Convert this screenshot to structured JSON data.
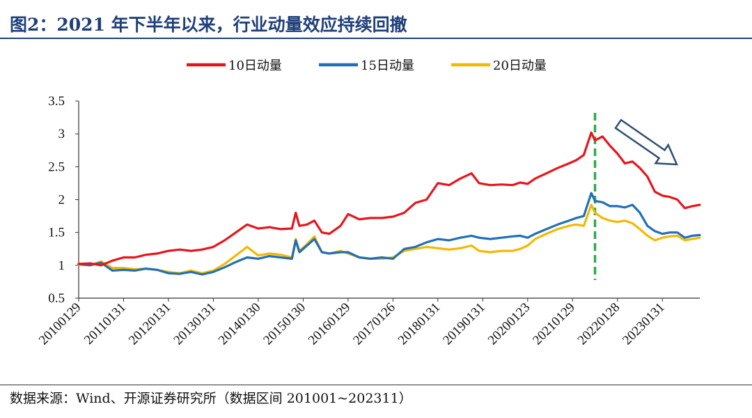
{
  "header": {
    "title": "图2：2021 年下半年以来，行业动量效应持续回撤"
  },
  "footer": {
    "source": "数据来源：Wind、开源证券研究所（数据区间 201001~202311）"
  },
  "colors": {
    "series_10": "#E8141B",
    "series_15": "#1F6FB8",
    "series_20": "#F5B800",
    "marker_line": "#2EAA4A",
    "arrow": "#2F4F6F",
    "title": "#1F3F7A"
  },
  "chart_data": {
    "type": "line",
    "ylim": [
      0.5,
      3.5
    ],
    "yticks": [
      "3.5",
      "3",
      "2.5",
      "2",
      "1.5",
      "1",
      "0.5"
    ],
    "ytick_values": [
      3.5,
      3.0,
      2.5,
      2.0,
      1.5,
      1.0,
      0.5
    ],
    "x_range": [
      0,
      166
    ],
    "xtick_labels": [
      "20100129",
      "20110131",
      "20120131",
      "20130131",
      "20140130",
      "20150130",
      "20160129",
      "20170126",
      "20180131",
      "20190131",
      "20200123",
      "20210129",
      "20220128",
      "20230131"
    ],
    "xtick_index": [
      0,
      12,
      24,
      36,
      48,
      60,
      72,
      84,
      96,
      108,
      120,
      132,
      144,
      156
    ],
    "vline_index": 138,
    "legend": {
      "placement": "top-center"
    },
    "series": [
      {
        "name": "10日动量",
        "color": "#E8141B",
        "points": [
          [
            0,
            1.02
          ],
          [
            3,
            1.03
          ],
          [
            6,
            1.0
          ],
          [
            9,
            1.07
          ],
          [
            12,
            1.12
          ],
          [
            15,
            1.12
          ],
          [
            18,
            1.16
          ],
          [
            21,
            1.18
          ],
          [
            24,
            1.22
          ],
          [
            27,
            1.24
          ],
          [
            30,
            1.22
          ],
          [
            33,
            1.24
          ],
          [
            36,
            1.28
          ],
          [
            39,
            1.38
          ],
          [
            42,
            1.5
          ],
          [
            45,
            1.62
          ],
          [
            48,
            1.56
          ],
          [
            51,
            1.58
          ],
          [
            54,
            1.55
          ],
          [
            57,
            1.56
          ],
          [
            58,
            1.8
          ],
          [
            59,
            1.6
          ],
          [
            61,
            1.62
          ],
          [
            63,
            1.68
          ],
          [
            65,
            1.5
          ],
          [
            67,
            1.48
          ],
          [
            70,
            1.6
          ],
          [
            72,
            1.78
          ],
          [
            75,
            1.7
          ],
          [
            78,
            1.72
          ],
          [
            81,
            1.72
          ],
          [
            84,
            1.74
          ],
          [
            87,
            1.8
          ],
          [
            90,
            1.95
          ],
          [
            93,
            2.0
          ],
          [
            96,
            2.25
          ],
          [
            99,
            2.22
          ],
          [
            102,
            2.32
          ],
          [
            105,
            2.4
          ],
          [
            107,
            2.25
          ],
          [
            110,
            2.22
          ],
          [
            113,
            2.23
          ],
          [
            116,
            2.22
          ],
          [
            118,
            2.26
          ],
          [
            120,
            2.24
          ],
          [
            122,
            2.32
          ],
          [
            125,
            2.4
          ],
          [
            128,
            2.48
          ],
          [
            131,
            2.55
          ],
          [
            133,
            2.6
          ],
          [
            135,
            2.68
          ],
          [
            137,
            3.02
          ],
          [
            138,
            2.9
          ],
          [
            140,
            2.96
          ],
          [
            142,
            2.82
          ],
          [
            144,
            2.7
          ],
          [
            146,
            2.55
          ],
          [
            148,
            2.58
          ],
          [
            150,
            2.48
          ],
          [
            152,
            2.35
          ],
          [
            154,
            2.12
          ],
          [
            156,
            2.06
          ],
          [
            158,
            2.04
          ],
          [
            160,
            2.0
          ],
          [
            162,
            1.87
          ],
          [
            164,
            1.9
          ],
          [
            166,
            1.92
          ]
        ]
      },
      {
        "name": "15日动量",
        "color": "#1F6FB8",
        "points": [
          [
            0,
            1.02
          ],
          [
            3,
            1.0
          ],
          [
            6,
            1.04
          ],
          [
            9,
            0.92
          ],
          [
            12,
            0.93
          ],
          [
            15,
            0.92
          ],
          [
            18,
            0.95
          ],
          [
            21,
            0.93
          ],
          [
            24,
            0.88
          ],
          [
            27,
            0.87
          ],
          [
            30,
            0.9
          ],
          [
            33,
            0.86
          ],
          [
            36,
            0.9
          ],
          [
            39,
            0.97
          ],
          [
            42,
            1.05
          ],
          [
            45,
            1.12
          ],
          [
            48,
            1.1
          ],
          [
            51,
            1.14
          ],
          [
            54,
            1.12
          ],
          [
            57,
            1.1
          ],
          [
            58,
            1.38
          ],
          [
            59,
            1.2
          ],
          [
            61,
            1.3
          ],
          [
            63,
            1.4
          ],
          [
            65,
            1.2
          ],
          [
            67,
            1.18
          ],
          [
            70,
            1.2
          ],
          [
            72,
            1.2
          ],
          [
            75,
            1.12
          ],
          [
            78,
            1.1
          ],
          [
            81,
            1.12
          ],
          [
            84,
            1.1
          ],
          [
            87,
            1.25
          ],
          [
            90,
            1.28
          ],
          [
            93,
            1.35
          ],
          [
            96,
            1.4
          ],
          [
            99,
            1.38
          ],
          [
            102,
            1.42
          ],
          [
            105,
            1.45
          ],
          [
            107,
            1.42
          ],
          [
            110,
            1.4
          ],
          [
            113,
            1.42
          ],
          [
            116,
            1.44
          ],
          [
            118,
            1.45
          ],
          [
            120,
            1.42
          ],
          [
            122,
            1.48
          ],
          [
            125,
            1.55
          ],
          [
            128,
            1.62
          ],
          [
            131,
            1.68
          ],
          [
            133,
            1.72
          ],
          [
            135,
            1.75
          ],
          [
            137,
            2.1
          ],
          [
            138,
            1.98
          ],
          [
            140,
            1.96
          ],
          [
            142,
            1.9
          ],
          [
            144,
            1.9
          ],
          [
            146,
            1.88
          ],
          [
            148,
            1.92
          ],
          [
            150,
            1.8
          ],
          [
            152,
            1.6
          ],
          [
            154,
            1.52
          ],
          [
            156,
            1.48
          ],
          [
            158,
            1.5
          ],
          [
            160,
            1.5
          ],
          [
            162,
            1.42
          ],
          [
            164,
            1.45
          ],
          [
            166,
            1.46
          ]
        ]
      },
      {
        "name": "20日动量",
        "color": "#F5B800",
        "points": [
          [
            0,
            1.01
          ],
          [
            3,
            1.0
          ],
          [
            6,
            1.06
          ],
          [
            9,
            0.96
          ],
          [
            12,
            0.96
          ],
          [
            15,
            0.94
          ],
          [
            18,
            0.95
          ],
          [
            21,
            0.93
          ],
          [
            24,
            0.9
          ],
          [
            27,
            0.88
          ],
          [
            30,
            0.92
          ],
          [
            33,
            0.88
          ],
          [
            36,
            0.92
          ],
          [
            39,
            1.02
          ],
          [
            42,
            1.15
          ],
          [
            45,
            1.28
          ],
          [
            48,
            1.15
          ],
          [
            51,
            1.18
          ],
          [
            54,
            1.16
          ],
          [
            57,
            1.12
          ],
          [
            58,
            1.4
          ],
          [
            59,
            1.22
          ],
          [
            61,
            1.32
          ],
          [
            63,
            1.44
          ],
          [
            65,
            1.2
          ],
          [
            67,
            1.18
          ],
          [
            70,
            1.22
          ],
          [
            72,
            1.18
          ],
          [
            75,
            1.12
          ],
          [
            78,
            1.1
          ],
          [
            81,
            1.1
          ],
          [
            84,
            1.12
          ],
          [
            87,
            1.22
          ],
          [
            90,
            1.25
          ],
          [
            93,
            1.28
          ],
          [
            96,
            1.26
          ],
          [
            99,
            1.24
          ],
          [
            102,
            1.26
          ],
          [
            105,
            1.3
          ],
          [
            107,
            1.22
          ],
          [
            110,
            1.2
          ],
          [
            113,
            1.22
          ],
          [
            116,
            1.22
          ],
          [
            118,
            1.25
          ],
          [
            120,
            1.3
          ],
          [
            122,
            1.4
          ],
          [
            125,
            1.48
          ],
          [
            128,
            1.55
          ],
          [
            131,
            1.6
          ],
          [
            133,
            1.62
          ],
          [
            135,
            1.6
          ],
          [
            137,
            1.92
          ],
          [
            138,
            1.8
          ],
          [
            140,
            1.72
          ],
          [
            142,
            1.68
          ],
          [
            144,
            1.66
          ],
          [
            146,
            1.68
          ],
          [
            148,
            1.64
          ],
          [
            150,
            1.55
          ],
          [
            152,
            1.45
          ],
          [
            154,
            1.38
          ],
          [
            156,
            1.42
          ],
          [
            158,
            1.44
          ],
          [
            160,
            1.45
          ],
          [
            162,
            1.38
          ],
          [
            164,
            1.4
          ],
          [
            166,
            1.42
          ]
        ]
      }
    ]
  }
}
